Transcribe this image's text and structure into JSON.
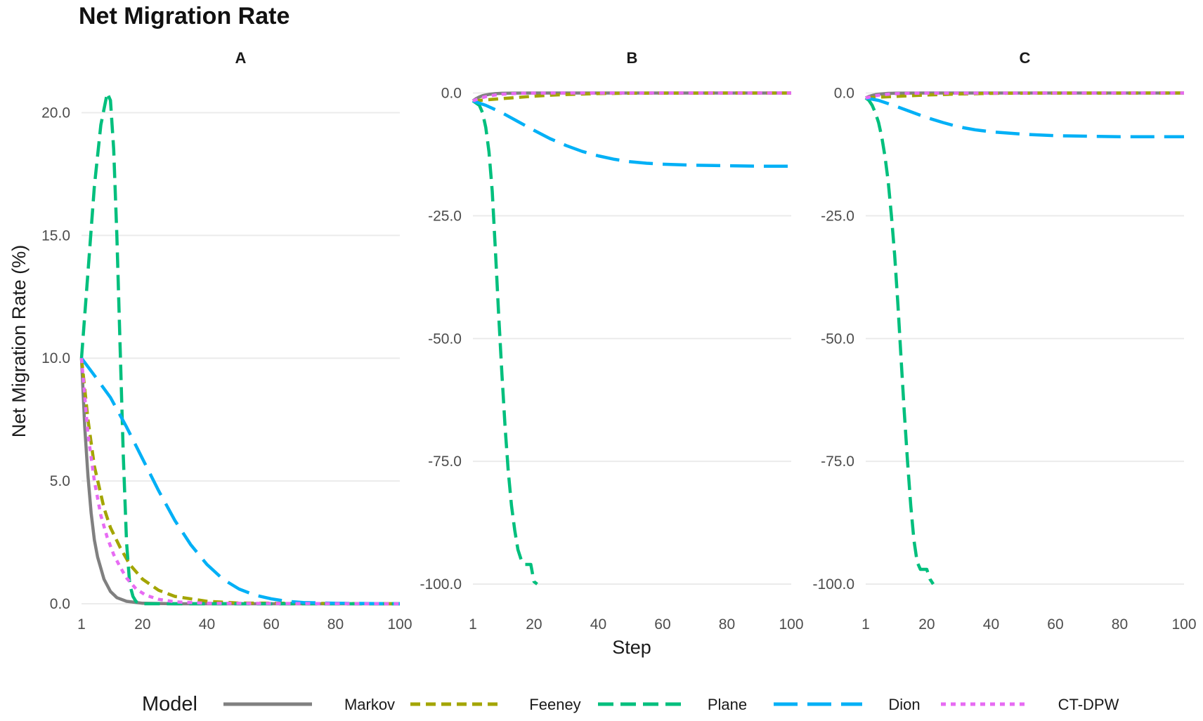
{
  "chart_data": {
    "type": "line",
    "title": "Net Migration Rate",
    "ylabel": "Net Migration Rate (%)",
    "xlabel": "Step",
    "legend": {
      "title": "Model",
      "position": "bottom",
      "entries": [
        "Markov",
        "Feeney",
        "Plane",
        "Dion",
        "CT-DPW"
      ]
    },
    "grid": true,
    "series_styles": [
      {
        "name": "Markov",
        "color": "#808080",
        "dash": "solid"
      },
      {
        "name": "Feeney",
        "color": "#a3a500",
        "dash": "short-dash"
      },
      {
        "name": "Plane",
        "color": "#00bf7d",
        "dash": "dash"
      },
      {
        "name": "Dion",
        "color": "#00b0f6",
        "dash": "long-dash"
      },
      {
        "name": "CT-DPW",
        "color": "#e76bf3",
        "dash": "dotted"
      }
    ],
    "panels": [
      {
        "title": "A",
        "xlim": [
          1,
          100
        ],
        "x_ticks": [
          1,
          20,
          40,
          60,
          80,
          100
        ],
        "ylim": [
          0,
          21.5
        ],
        "y_ticks": [
          0,
          5,
          10,
          15,
          20
        ],
        "y_tick_labels": [
          "0.0",
          "5.0",
          "10.0",
          "15.0",
          "20.0"
        ],
        "series": [
          {
            "name": "Markov",
            "x": [
              1,
              2,
              3,
              4,
              5,
              6,
              8,
              10,
              12,
              15,
              20,
              30,
              100
            ],
            "values": [
              10,
              7.2,
              5.2,
              3.7,
              2.6,
              1.9,
              1.0,
              0.5,
              0.25,
              0.1,
              0.02,
              0,
              0
            ]
          },
          {
            "name": "Feeney",
            "x": [
              1,
              3,
              5,
              8,
              10,
              13,
              16,
              20,
              25,
              30,
              40,
              50,
              100
            ],
            "values": [
              10,
              7.5,
              5.6,
              3.9,
              3.1,
              2.3,
              1.6,
              1.0,
              0.55,
              0.3,
              0.1,
              0.03,
              0
            ]
          },
          {
            "name": "Plane",
            "x": [
              1,
              3,
              5,
              7,
              9,
              10,
              11,
              12,
              13,
              14,
              15,
              16,
              17,
              18,
              20,
              25,
              100
            ],
            "values": [
              10,
              13.5,
              17,
              19.5,
              20.8,
              20.5,
              18.5,
              15,
              10.5,
              6,
              2.5,
              0.8,
              0.3,
              0.08,
              0,
              0,
              0
            ]
          },
          {
            "name": "Dion",
            "x": [
              1,
              5,
              10,
              15,
              20,
              25,
              30,
              35,
              40,
              45,
              50,
              55,
              60,
              65,
              70,
              80,
              100
            ],
            "values": [
              10,
              9.3,
              8.4,
              7.2,
              5.9,
              4.6,
              3.4,
              2.4,
              1.6,
              1.0,
              0.6,
              0.35,
              0.2,
              0.1,
              0.05,
              0.02,
              0
            ]
          },
          {
            "name": "CT-DPW",
            "x": [
              1,
              3,
              5,
              7,
              9,
              11,
              13,
              15,
              18,
              21,
              25,
              30,
              40,
              100
            ],
            "values": [
              10,
              6.9,
              5.0,
              3.6,
              2.7,
              2.0,
              1.5,
              1.05,
              0.6,
              0.35,
              0.18,
              0.08,
              0.02,
              0
            ]
          }
        ]
      },
      {
        "title": "B",
        "xlim": [
          1,
          100
        ],
        "x_ticks": [
          1,
          20,
          40,
          60,
          80,
          100
        ],
        "ylim": [
          -104,
          3.5
        ],
        "y_ticks": [
          0,
          -25,
          -50,
          -75,
          -100
        ],
        "y_tick_labels": [
          "0.0",
          "-25.0",
          "-50.0",
          "-75.0",
          "-100.0"
        ],
        "series": [
          {
            "name": "Markov",
            "x": [
              1,
              2,
              3,
              4,
              5,
              6,
              8,
              10,
              14,
              20,
              100
            ],
            "values": [
              -1.6,
              -1.15,
              -0.8,
              -0.55,
              -0.4,
              -0.28,
              -0.13,
              -0.06,
              -0.01,
              0,
              0
            ]
          },
          {
            "name": "Feeney",
            "x": [
              1,
              5,
              10,
              15,
              20,
              25,
              30,
              40,
              50,
              60,
              100
            ],
            "values": [
              -1.6,
              -1.4,
              -1.15,
              -0.9,
              -0.65,
              -0.45,
              -0.3,
              -0.12,
              -0.05,
              -0.02,
              0
            ]
          },
          {
            "name": "Plane",
            "x": [
              1,
              3,
              4,
              5,
              6,
              7,
              8,
              9,
              10,
              11,
              12,
              13,
              14,
              15,
              16,
              17,
              18,
              19,
              20,
              21
            ],
            "values": [
              -1.6,
              -2.5,
              -4,
              -7,
              -12,
              -20,
              -32,
              -45,
              -57,
              -68,
              -77,
              -84,
              -89,
              -93,
              -95,
              -96,
              -96,
              -96,
              -99.5,
              -100
            ]
          },
          {
            "name": "Dion",
            "x": [
              1,
              5,
              10,
              15,
              20,
              25,
              30,
              35,
              40,
              45,
              50,
              55,
              60,
              70,
              80,
              90,
              100
            ],
            "values": [
              -1.6,
              -2.5,
              -4.0,
              -5.8,
              -7.6,
              -9.3,
              -10.7,
              -11.9,
              -12.8,
              -13.5,
              -14.0,
              -14.3,
              -14.5,
              -14.7,
              -14.8,
              -14.9,
              -14.9
            ]
          },
          {
            "name": "CT-DPW",
            "x": [
              1,
              3,
              5,
              8,
              10,
              15,
              20,
              30,
              100
            ],
            "values": [
              -1.6,
              -1.1,
              -0.75,
              -0.4,
              -0.25,
              -0.08,
              -0.02,
              0,
              0
            ]
          }
        ]
      },
      {
        "title": "C",
        "xlim": [
          1,
          100
        ],
        "x_ticks": [
          1,
          20,
          40,
          60,
          80,
          100
        ],
        "ylim": [
          -104,
          3.5
        ],
        "y_ticks": [
          0,
          -25,
          -50,
          -75,
          -100
        ],
        "y_tick_labels": [
          "0.0",
          "-25.0",
          "-50.0",
          "-75.0",
          "-100.0"
        ],
        "series": [
          {
            "name": "Markov",
            "x": [
              1,
              2,
              3,
              4,
              5,
              6,
              8,
              10,
              14,
              20,
              100
            ],
            "values": [
              -1.0,
              -0.7,
              -0.5,
              -0.35,
              -0.25,
              -0.17,
              -0.08,
              -0.04,
              -0.01,
              0,
              0
            ]
          },
          {
            "name": "Feeney",
            "x": [
              1,
              5,
              10,
              15,
              20,
              30,
              40,
              50,
              100
            ],
            "values": [
              -1.0,
              -0.85,
              -0.7,
              -0.55,
              -0.4,
              -0.2,
              -0.08,
              -0.03,
              0
            ]
          },
          {
            "name": "Plane",
            "x": [
              1,
              2,
              3,
              4,
              5,
              6,
              7,
              8,
              9,
              10,
              11,
              12,
              13,
              14,
              15,
              16,
              17,
              18,
              19,
              20,
              21,
              22
            ],
            "values": [
              -1.0,
              -1.5,
              -2.5,
              -4,
              -6,
              -9,
              -13,
              -18,
              -25,
              -33,
              -43,
              -54,
              -65,
              -75,
              -84,
              -91,
              -95.5,
              -97,
              -97,
              -97,
              -99,
              -100
            ]
          },
          {
            "name": "Dion",
            "x": [
              1,
              5,
              10,
              15,
              20,
              25,
              30,
              35,
              40,
              50,
              60,
              70,
              80,
              90,
              100
            ],
            "values": [
              -1.0,
              -1.5,
              -2.6,
              -3.8,
              -5.0,
              -6.0,
              -6.9,
              -7.5,
              -7.9,
              -8.4,
              -8.7,
              -8.8,
              -8.9,
              -8.9,
              -8.9
            ]
          },
          {
            "name": "CT-DPW",
            "x": [
              1,
              3,
              5,
              8,
              10,
              15,
              20,
              100
            ],
            "values": [
              -1.0,
              -0.7,
              -0.45,
              -0.25,
              -0.15,
              -0.05,
              -0.01,
              0
            ]
          }
        ]
      }
    ]
  }
}
